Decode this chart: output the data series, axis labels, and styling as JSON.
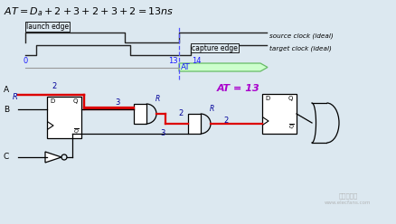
{
  "bg_color": "#dce8f0",
  "formula": "AT = D_a +2+3+2+3+2 = 13ns",
  "source_clock_label": "source clock (ideal)",
  "target_clock_label": "target clock (ideal)",
  "launch_edge_label": "launch edge",
  "capture_edge_label": "capture edge",
  "at_label": "AT",
  "at_eq_label": "AT = 13",
  "label_0": "0",
  "label_13": "13",
  "label_14": "14",
  "label_A": "A",
  "label_B": "B",
  "label_C": "C",
  "label_R": "R",
  "red_color": "#dd0000",
  "blue_dark": "#1a1aff",
  "blue_navy": "#000099",
  "purple": "#aa00cc",
  "green_fill": "#ccffcc",
  "green_border": "#66bb66",
  "line_color": "#222222",
  "dashed_color": "#5555ff",
  "gray_line": "#999999",
  "white": "#ffffff"
}
